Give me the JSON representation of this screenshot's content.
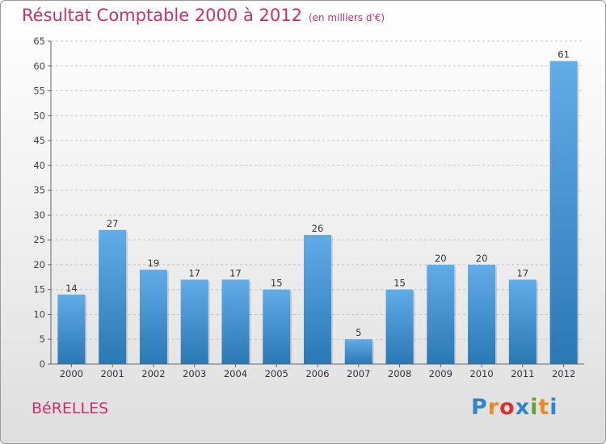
{
  "title": "Résultat Comptable 2000 à 2012",
  "subtitle": "(en milliers d'€)",
  "commune": "BéRELLES",
  "logo": {
    "text": "Proxiti",
    "colors": [
      "#2f86c8",
      "#f08a1a",
      "#e0302a",
      "#2f86c8",
      "#5aa830",
      "#f08a1a",
      "#2f86c8"
    ]
  },
  "colors": {
    "title": "#c8306e",
    "bar_light": "#6bb2ea",
    "bar_dark": "#2a78b4",
    "grid": "#c8c8c8"
  },
  "chart_data": {
    "type": "bar",
    "categories": [
      "2000",
      "2001",
      "2002",
      "2003",
      "2004",
      "2005",
      "2006",
      "2007",
      "2008",
      "2009",
      "2010",
      "2011",
      "2012"
    ],
    "values": [
      14,
      27,
      19,
      17,
      17,
      15,
      26,
      5,
      15,
      20,
      20,
      17,
      61
    ],
    "ylim": [
      0,
      65
    ],
    "yticks": [
      0,
      5,
      10,
      15,
      20,
      25,
      30,
      35,
      40,
      45,
      50,
      55,
      60,
      65
    ],
    "title": "Résultat Comptable 2000 à 2012",
    "xlabel": "",
    "ylabel": "",
    "grid": true
  }
}
